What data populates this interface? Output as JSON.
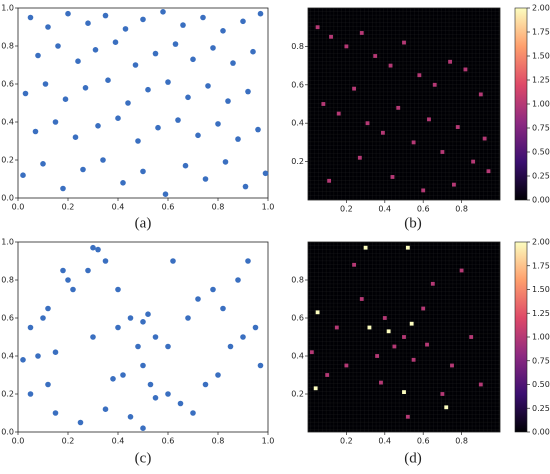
{
  "chart_data": [
    {
      "type": "scatter",
      "label": "(a)",
      "color": "#3a6fc0",
      "x": [
        0.05,
        0.12,
        0.2,
        0.28,
        0.35,
        0.43,
        0.5,
        0.58,
        0.66,
        0.74,
        0.82,
        0.9,
        0.97,
        0.08,
        0.16,
        0.24,
        0.31,
        0.39,
        0.47,
        0.55,
        0.63,
        0.7,
        0.78,
        0.86,
        0.94,
        0.03,
        0.11,
        0.19,
        0.27,
        0.36,
        0.44,
        0.52,
        0.6,
        0.68,
        0.76,
        0.84,
        0.92,
        0.07,
        0.15,
        0.23,
        0.32,
        0.4,
        0.48,
        0.56,
        0.64,
        0.72,
        0.8,
        0.88,
        0.96,
        0.02,
        0.1,
        0.18,
        0.26,
        0.34,
        0.42,
        0.5,
        0.59,
        0.67,
        0.75,
        0.83,
        0.91,
        0.99
      ],
      "y": [
        0.95,
        0.9,
        0.97,
        0.92,
        0.96,
        0.89,
        0.94,
        0.98,
        0.91,
        0.95,
        0.88,
        0.93,
        0.97,
        0.75,
        0.8,
        0.72,
        0.78,
        0.82,
        0.7,
        0.76,
        0.81,
        0.73,
        0.79,
        0.71,
        0.77,
        0.55,
        0.6,
        0.52,
        0.58,
        0.62,
        0.5,
        0.57,
        0.61,
        0.53,
        0.59,
        0.51,
        0.56,
        0.35,
        0.4,
        0.32,
        0.38,
        0.42,
        0.3,
        0.37,
        0.41,
        0.33,
        0.39,
        0.31,
        0.36,
        0.12,
        0.18,
        0.05,
        0.15,
        0.2,
        0.08,
        0.14,
        0.02,
        0.17,
        0.1,
        0.19,
        0.06,
        0.13
      ],
      "xlim": [
        0,
        1
      ],
      "ylim": [
        0,
        1
      ],
      "xticks": [
        {
          "value": 0,
          "label": "0.0"
        },
        0.2,
        0.4,
        0.6,
        0.8,
        {
          "value": 1,
          "label": "1.0"
        }
      ],
      "yticks": [
        {
          "value": 0,
          "label": "0.0"
        },
        0.2,
        0.4,
        0.6,
        0.8,
        {
          "value": 1,
          "label": "1.0"
        }
      ]
    },
    {
      "type": "heatmap",
      "label": "(b)",
      "colormap": "magma",
      "x": [
        0.05,
        0.12,
        0.2,
        0.28,
        0.35,
        0.43,
        0.5,
        0.58,
        0.66,
        0.74,
        0.82,
        0.9,
        0.08,
        0.16,
        0.24,
        0.31,
        0.39,
        0.47,
        0.55,
        0.63,
        0.7,
        0.78,
        0.86,
        0.94,
        0.11,
        0.27,
        0.44,
        0.6,
        0.76,
        0.92
      ],
      "y": [
        0.9,
        0.85,
        0.8,
        0.87,
        0.75,
        0.7,
        0.82,
        0.65,
        0.6,
        0.72,
        0.68,
        0.55,
        0.5,
        0.45,
        0.58,
        0.4,
        0.35,
        0.48,
        0.3,
        0.42,
        0.25,
        0.38,
        0.2,
        0.15,
        0.1,
        0.22,
        0.12,
        0.05,
        0.08,
        0.32
      ],
      "values": [
        1,
        1,
        1,
        1,
        1,
        1,
        1,
        1,
        1,
        1,
        1,
        1,
        1,
        1,
        1,
        1,
        1,
        1,
        1,
        1,
        1,
        1,
        1,
        1,
        1,
        1,
        1,
        1,
        1,
        1
      ],
      "xlim": [
        0,
        1
      ],
      "ylim": [
        0,
        1
      ],
      "xticks": [
        0.2,
        0.4,
        0.6,
        0.8
      ],
      "yticks": [
        0.2,
        0.4,
        0.6,
        0.8
      ],
      "clim": [
        0,
        2
      ],
      "cticks": [
        {
          "value": 0,
          "label": "0.00"
        },
        0.25,
        {
          "value": 0.5,
          "label": "0.50"
        },
        0.75,
        {
          "value": 1,
          "label": "1.00"
        },
        1.25,
        {
          "value": 1.5,
          "label": "1.50"
        },
        1.75,
        {
          "value": 2,
          "label": "2.00"
        }
      ]
    },
    {
      "type": "scatter",
      "label": "(c)",
      "color": "#3a6fc0",
      "x": [
        0.3,
        0.32,
        0.35,
        0.28,
        0.4,
        0.45,
        0.5,
        0.52,
        0.55,
        0.48,
        0.42,
        0.38,
        0.5,
        0.53,
        0.1,
        0.12,
        0.05,
        0.08,
        0.15,
        0.2,
        0.18,
        0.22,
        0.6,
        0.65,
        0.7,
        0.75,
        0.8,
        0.85,
        0.9,
        0.95,
        0.72,
        0.78,
        0.88,
        0.62,
        0.25,
        0.15,
        0.05,
        0.02,
        0.35,
        0.45,
        0.55,
        0.68,
        0.82,
        0.92,
        0.97,
        0.4,
        0.3,
        0.6,
        0.12,
        0.5
      ],
      "y": [
        0.97,
        0.96,
        0.9,
        0.85,
        0.55,
        0.6,
        0.58,
        0.62,
        0.5,
        0.45,
        0.3,
        0.28,
        0.35,
        0.25,
        0.6,
        0.65,
        0.55,
        0.4,
        0.42,
        0.8,
        0.85,
        0.75,
        0.2,
        0.15,
        0.1,
        0.25,
        0.3,
        0.45,
        0.5,
        0.55,
        0.7,
        0.75,
        0.8,
        0.9,
        0.05,
        0.1,
        0.2,
        0.38,
        0.12,
        0.08,
        0.18,
        0.6,
        0.65,
        0.9,
        0.35,
        0.75,
        0.5,
        0.45,
        0.25,
        0.02
      ],
      "xlim": [
        0,
        1
      ],
      "ylim": [
        0,
        1
      ],
      "xticks": [
        {
          "value": 0,
          "label": "0.0"
        },
        0.2,
        0.4,
        0.6,
        0.8,
        {
          "value": 1,
          "label": "1.0"
        }
      ],
      "yticks": [
        {
          "value": 0,
          "label": "0.0"
        },
        0.2,
        0.4,
        0.6,
        0.8,
        {
          "value": 1,
          "label": "1.0"
        }
      ]
    },
    {
      "type": "heatmap",
      "label": "(d)",
      "colormap": "magma",
      "x": [
        0.02,
        0.04,
        0.1,
        0.15,
        0.2,
        0.28,
        0.3,
        0.36,
        0.4,
        0.45,
        0.5,
        0.52,
        0.55,
        0.6,
        0.65,
        0.7,
        0.75,
        0.8,
        0.85,
        0.9,
        0.42,
        0.54,
        0.05,
        0.32,
        0.52,
        0.5,
        0.72,
        0.38,
        0.24,
        0.62
      ],
      "y": [
        0.42,
        0.23,
        0.3,
        0.55,
        0.35,
        0.7,
        0.97,
        0.4,
        0.6,
        0.45,
        0.5,
        0.08,
        0.38,
        0.65,
        0.78,
        0.2,
        0.35,
        0.85,
        0.5,
        0.25,
        0.53,
        0.57,
        0.63,
        0.55,
        0.97,
        0.21,
        0.13,
        0.26,
        0.88,
        0.46
      ],
      "values": [
        1,
        2,
        1,
        1,
        1,
        1,
        2,
        1,
        1,
        1,
        1,
        1,
        1,
        1,
        1,
        1,
        1,
        1,
        1,
        1,
        2,
        2,
        2,
        2,
        2,
        2,
        2,
        1,
        1,
        1
      ],
      "xlim": [
        0,
        1
      ],
      "ylim": [
        0,
        1
      ],
      "xticks": [
        0.2,
        0.4,
        0.6,
        0.8
      ],
      "yticks": [
        0.2,
        0.4,
        0.6,
        0.8
      ],
      "clim": [
        0,
        2
      ],
      "cticks": [
        {
          "value": 0,
          "label": "0.00"
        },
        0.25,
        {
          "value": 0.5,
          "label": "0.50"
        },
        0.75,
        {
          "value": 1,
          "label": "1.00"
        },
        1.25,
        {
          "value": 1.5,
          "label": "1.50"
        },
        1.75,
        {
          "value": 2,
          "label": "2.00"
        }
      ]
    }
  ]
}
